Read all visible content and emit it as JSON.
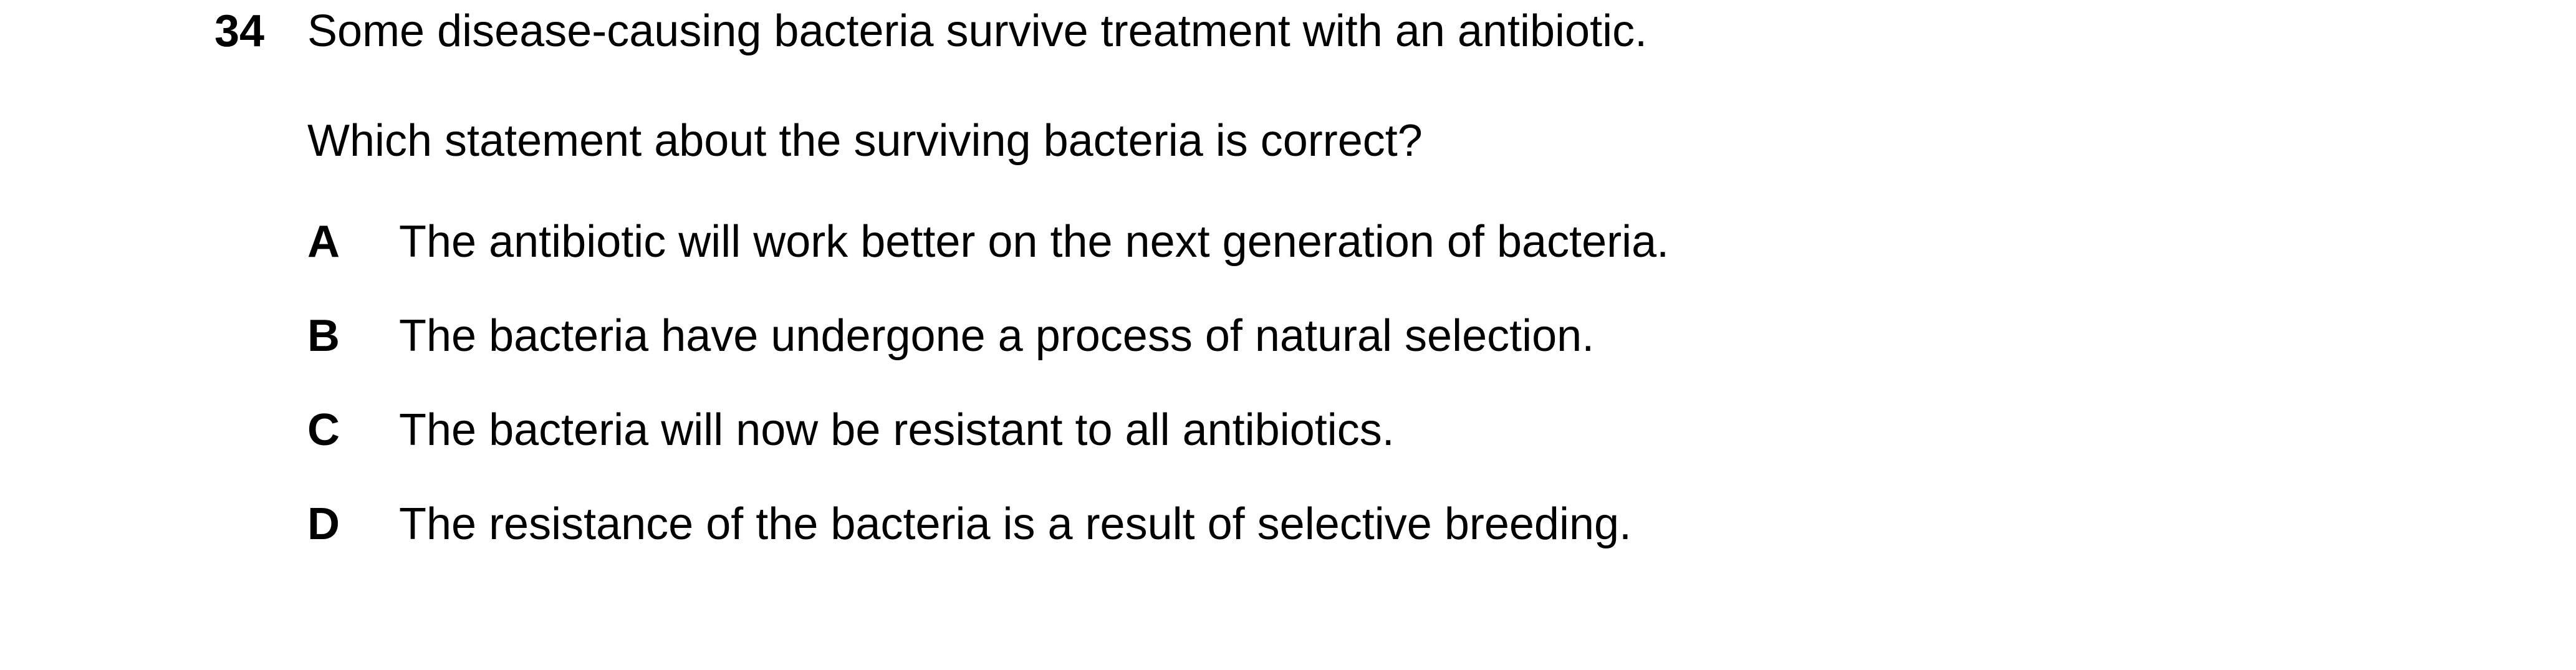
{
  "question": {
    "number": "34",
    "stem": "Some disease-causing bacteria survive treatment with an antibiotic.",
    "prompt": "Which statement about the surviving bacteria is correct?",
    "options": [
      {
        "letter": "A",
        "text": "The antibiotic will work better on the next generation of bacteria."
      },
      {
        "letter": "B",
        "text": "The bacteria have undergone a process of natural selection."
      },
      {
        "letter": "C",
        "text": "The bacteria will now be resistant to all antibiotics."
      },
      {
        "letter": "D",
        "text": "The resistance of the bacteria is a result of selective breeding."
      }
    ]
  }
}
